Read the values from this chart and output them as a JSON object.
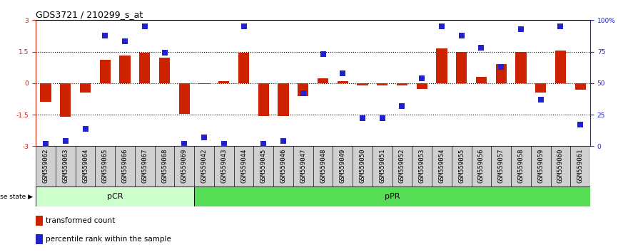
{
  "title": "GDS3721 / 210299_s_at",
  "samples": [
    "GSM559062",
    "GSM559063",
    "GSM559064",
    "GSM559065",
    "GSM559066",
    "GSM559067",
    "GSM559068",
    "GSM559069",
    "GSM559042",
    "GSM559043",
    "GSM559044",
    "GSM559045",
    "GSM559046",
    "GSM559047",
    "GSM559048",
    "GSM559049",
    "GSM559050",
    "GSM559051",
    "GSM559052",
    "GSM559053",
    "GSM559054",
    "GSM559055",
    "GSM559056",
    "GSM559057",
    "GSM559058",
    "GSM559059",
    "GSM559060",
    "GSM559061"
  ],
  "bar_values": [
    -0.9,
    -1.6,
    -0.45,
    1.1,
    1.3,
    1.45,
    1.2,
    -1.45,
    -0.05,
    0.1,
    1.45,
    -1.55,
    -1.55,
    -0.6,
    0.22,
    0.1,
    -0.12,
    -0.12,
    -0.12,
    -0.28,
    1.65,
    1.5,
    0.3,
    0.9,
    1.5,
    -0.45,
    1.55,
    -0.32
  ],
  "percentile_values": [
    2,
    4,
    14,
    88,
    83,
    95,
    74,
    2,
    7,
    2,
    95,
    2,
    4,
    42,
    73,
    58,
    22,
    22,
    32,
    54,
    95,
    88,
    78,
    63,
    93,
    37,
    95,
    17
  ],
  "bar_color": "#cc2200",
  "dot_color": "#2222cc",
  "pCR_count": 8,
  "pCR_color": "#ccffcc",
  "pPR_color": "#55dd55",
  "ylim": [
    -3,
    3
  ],
  "yticks_left": [
    -3,
    -1.5,
    0,
    1.5,
    3
  ],
  "ytick_labels_right": [
    "0",
    "25",
    "50",
    "75",
    "100%"
  ],
  "hlines": [
    -1.5,
    0,
    1.5
  ],
  "dot_size": 28,
  "title_fontsize": 9,
  "tick_fontsize": 6.5,
  "bar_width": 0.55
}
